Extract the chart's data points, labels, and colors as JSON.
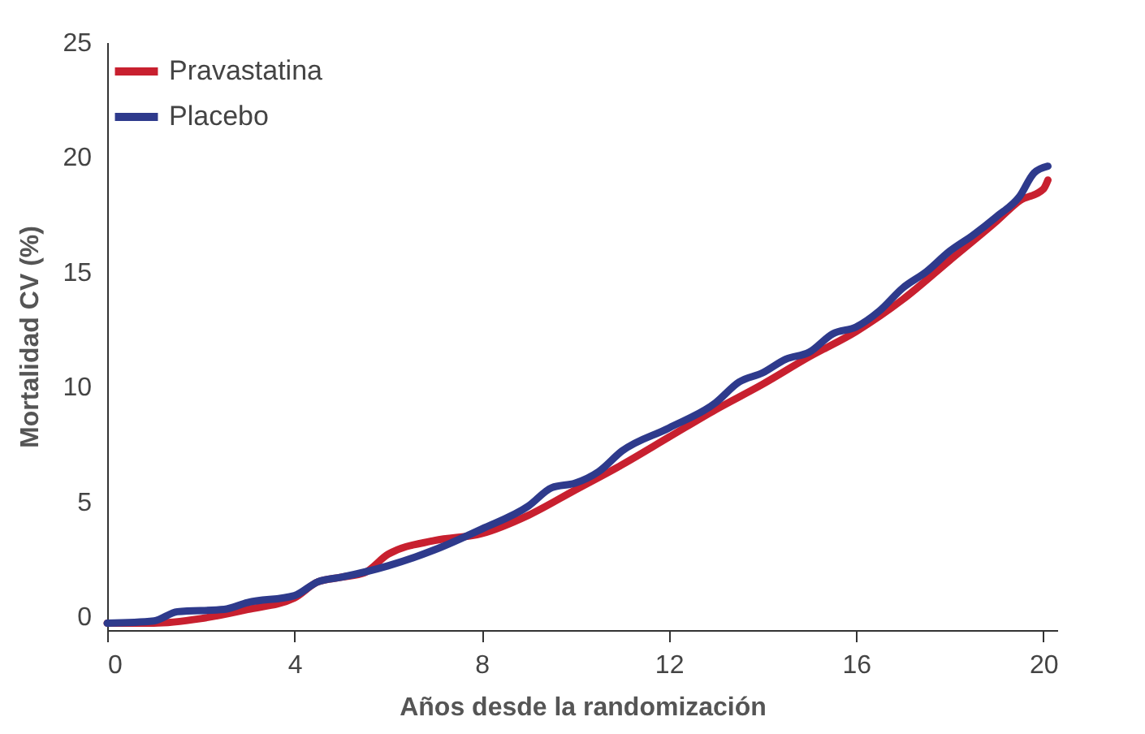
{
  "chart_data": {
    "type": "line",
    "xlabel": "Años desde la randomización",
    "ylabel": "Mortalidad CV (%)",
    "xlim": [
      0,
      20.3
    ],
    "xticks": [
      0,
      4,
      8,
      12,
      16,
      20
    ],
    "ylim": [
      -0.6,
      25
    ],
    "yticks": [
      0,
      5,
      10,
      15,
      20,
      25
    ],
    "grid": false,
    "legend": "top left",
    "marker": "none",
    "line_style": "solid",
    "series": [
      {
        "name": "Pravastatina",
        "color": "#c8202f",
        "x": [
          0,
          1,
          2,
          3,
          4,
          4.5,
          5,
          5.5,
          6,
          7,
          8,
          9,
          10,
          11,
          12,
          13,
          14,
          15,
          16,
          17,
          18,
          19,
          19.5,
          20,
          20.1
        ],
        "values": [
          -0.3,
          -0.3,
          -0.1,
          0.3,
          0.8,
          1.5,
          1.7,
          1.9,
          2.7,
          3.3,
          3.6,
          4.4,
          5.5,
          6.6,
          7.8,
          9.0,
          10.1,
          11.3,
          12.4,
          13.8,
          15.5,
          17.2,
          18.1,
          18.6,
          19.0
        ]
      },
      {
        "name": "Placebo",
        "color": "#2e3a8c",
        "x": [
          0,
          1,
          1.5,
          2.5,
          3,
          4,
          4.5,
          5,
          6,
          7,
          8,
          9,
          9.5,
          10,
          10.5,
          11,
          12,
          13,
          13.5,
          14,
          14.5,
          15,
          15.5,
          16,
          16.5,
          17,
          17.5,
          18,
          18.5,
          19,
          19.5,
          19.8,
          20.1
        ],
        "values": [
          -0.3,
          -0.2,
          0.2,
          0.3,
          0.6,
          0.9,
          1.5,
          1.7,
          2.2,
          2.9,
          3.8,
          4.8,
          5.6,
          5.8,
          6.3,
          7.2,
          8.2,
          9.3,
          10.2,
          10.6,
          11.2,
          11.5,
          12.3,
          12.6,
          13.3,
          14.3,
          15.0,
          15.9,
          16.6,
          17.4,
          18.3,
          19.3,
          19.6
        ]
      }
    ]
  }
}
